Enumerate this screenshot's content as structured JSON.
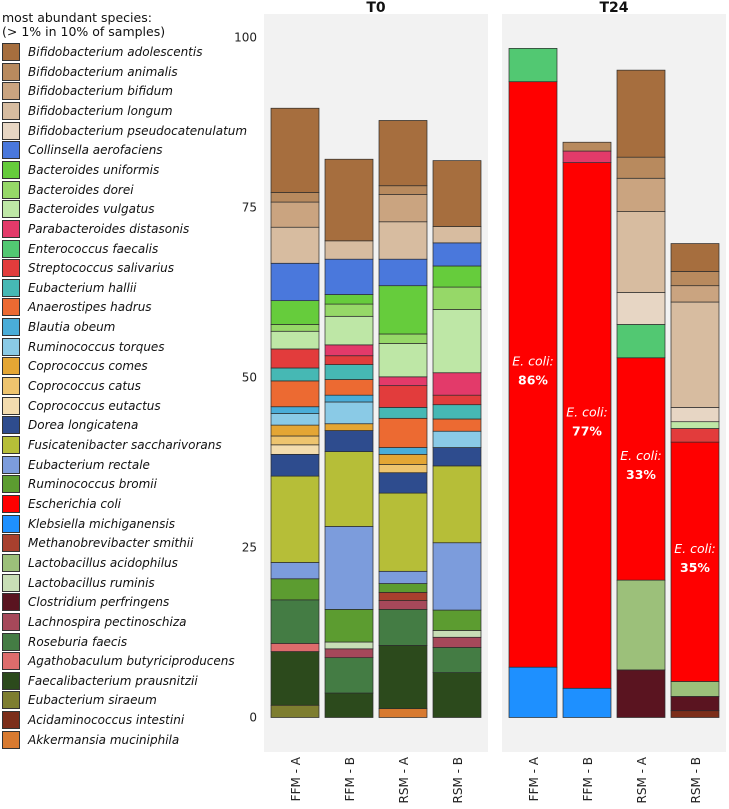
{
  "chart_data": {
    "type": "bar",
    "stacked": true,
    "legend_title": [
      "most abundant species:",
      "(> 1% in 10% of samples)"
    ],
    "ylim": [
      0,
      100
    ],
    "yticks": [
      0,
      25,
      50,
      75,
      100
    ],
    "species": [
      {
        "name": "Bifidobacterium adolescentis",
        "color": "#A66E3E"
      },
      {
        "name": "Bifidobacterium animalis",
        "color": "#B88A5E"
      },
      {
        "name": "Bifidobacterium bifidum",
        "color": "#CAA480"
      },
      {
        "name": "Bifidobacterium longum",
        "color": "#D7BCA0"
      },
      {
        "name": "Bifidobacterium pseudocatenulatum",
        "color": "#E7D6C4"
      },
      {
        "name": "Collinsella aerofaciens",
        "color": "#4A78DC"
      },
      {
        "name": "Bacteroides uniformis",
        "color": "#66CC3C"
      },
      {
        "name": "Bacteroides dorei",
        "color": "#96D868"
      },
      {
        "name": "Bacteroides vulgatus",
        "color": "#BEE7A6"
      },
      {
        "name": "Parabacteroides distasonis",
        "color": "#E33A6A"
      },
      {
        "name": "Enterococcus faecalis",
        "color": "#52C872"
      },
      {
        "name": "Streptococcus salivarius",
        "color": "#E23C3C"
      },
      {
        "name": "Eubacterium hallii",
        "color": "#46B8B4"
      },
      {
        "name": "Anaerostipes hadrus",
        "color": "#EC6A32"
      },
      {
        "name": "Blautia obeum",
        "color": "#4AADD8"
      },
      {
        "name": "Ruminococcus torques",
        "color": "#8ACAE6"
      },
      {
        "name": "Coprococcus comes",
        "color": "#E4A634"
      },
      {
        "name": "Coprococcus catus",
        "color": "#EEC46E"
      },
      {
        "name": "Coprococcus eutactus",
        "color": "#F3DCAE"
      },
      {
        "name": "Dorea longicatena",
        "color": "#2E4C8E"
      },
      {
        "name": "Fusicatenibacter saccharivorans",
        "color": "#B6BE38"
      },
      {
        "name": "Eubacterium rectale",
        "color": "#7C9CDC"
      },
      {
        "name": "Ruminococcus bromii",
        "color": "#5C9C30"
      },
      {
        "name": "Escherichia coli",
        "color": "#FF0000"
      },
      {
        "name": "Klebsiella michiganensis",
        "color": "#1E90FF"
      },
      {
        "name": "Methanobrevibacter smithii",
        "color": "#A8402E"
      },
      {
        "name": "Lactobacillus acidophilus",
        "color": "#9CC07A"
      },
      {
        "name": "Lactobacillus ruminis",
        "color": "#C8DEB6"
      },
      {
        "name": "Clostridium perfringens",
        "color": "#5A1420"
      },
      {
        "name": "Lachnospira pectinoschiza",
        "color": "#A6485A"
      },
      {
        "name": "Roseburia faecis",
        "color": "#447C44"
      },
      {
        "name": "Agathobaculum butyriciproducens",
        "color": "#DE6C6C"
      },
      {
        "name": "Faecalibacterium prausnitzii",
        "color": "#2C4A1C"
      },
      {
        "name": "Eubacterium siraeum",
        "color": "#7E7E30"
      },
      {
        "name": "Acidaminococcus intestini",
        "color": "#7C2E1A"
      },
      {
        "name": "Akkermansia muciniphila",
        "color": "#D87A30"
      }
    ],
    "panels": [
      {
        "title": "T0",
        "samples": [
          {
            "label": "FFM - A",
            "segments": [
              [
                "Eubacterium siraeum",
                1.8
              ],
              [
                "Faecalibacterium prausnitzii",
                7.9
              ],
              [
                "Agathobaculum butyriciproducens",
                1.2
              ],
              [
                "Roseburia faecis",
                6.4
              ],
              [
                "Ruminococcus bromii",
                3.1
              ],
              [
                "Eubacterium rectale",
                2.4
              ],
              [
                "Fusicatenibacter saccharivorans",
                12.7
              ],
              [
                "Dorea longicatena",
                3.2
              ],
              [
                "Coprococcus eutactus",
                1.4
              ],
              [
                "Coprococcus catus",
                1.3
              ],
              [
                "Coprococcus comes",
                1.6
              ],
              [
                "Ruminococcus torques",
                1.7
              ],
              [
                "Blautia obeum",
                1.0
              ],
              [
                "Anaerostipes hadrus",
                3.8
              ],
              [
                "Eubacterium hallii",
                1.9
              ],
              [
                "Streptococcus salivarius",
                2.8
              ],
              [
                "Bacteroides vulgatus",
                2.6
              ],
              [
                "Bacteroides dorei",
                1.0
              ],
              [
                "Bacteroides uniformis",
                3.5
              ],
              [
                "Collinsella aerofaciens",
                5.5
              ],
              [
                "Bifidobacterium longum",
                5.3
              ],
              [
                "Bifidobacterium bifidum",
                3.7
              ],
              [
                "Bifidobacterium animalis",
                1.4
              ],
              [
                "Bifidobacterium adolescentis",
                12.4
              ]
            ]
          },
          {
            "label": "FFM - B",
            "segments": [
              [
                "Faecalibacterium prausnitzii",
                3.6
              ],
              [
                "Roseburia faecis",
                5.2
              ],
              [
                "Lachnospira pectinoschiza",
                1.3
              ],
              [
                "Lactobacillus ruminis",
                1.0
              ],
              [
                "Ruminococcus bromii",
                4.8
              ],
              [
                "Eubacterium rectale",
                12.2
              ],
              [
                "Fusicatenibacter saccharivorans",
                11.0
              ],
              [
                "Dorea longicatena",
                3.1
              ],
              [
                "Coprococcus comes",
                1.0
              ],
              [
                "Ruminococcus torques",
                3.2
              ],
              [
                "Blautia obeum",
                1.0
              ],
              [
                "Anaerostipes hadrus",
                2.3
              ],
              [
                "Eubacterium hallii",
                2.2
              ],
              [
                "Streptococcus salivarius",
                1.3
              ],
              [
                "Parabacteroides distasonis",
                1.6
              ],
              [
                "Bacteroides vulgatus",
                4.2
              ],
              [
                "Bacteroides dorei",
                1.8
              ],
              [
                "Bacteroides uniformis",
                1.4
              ],
              [
                "Collinsella aerofaciens",
                5.2
              ],
              [
                "Bifidobacterium longum",
                2.7
              ],
              [
                "Bifidobacterium adolescentis",
                12.0
              ]
            ]
          },
          {
            "label": "RSM - A",
            "segments": [
              [
                "Akkermansia muciniphila",
                1.3
              ],
              [
                "Faecalibacterium prausnitzii",
                9.3
              ],
              [
                "Roseburia faecis",
                5.3
              ],
              [
                "Lachnospira pectinoschiza",
                1.3
              ],
              [
                "Methanobrevibacter smithii",
                1.2
              ],
              [
                "Ruminococcus bromii",
                1.3
              ],
              [
                "Eubacterium rectale",
                1.8
              ],
              [
                "Fusicatenibacter saccharivorans",
                11.5
              ],
              [
                "Dorea longicatena",
                3.0
              ],
              [
                "Coprococcus catus",
                1.2
              ],
              [
                "Coprococcus comes",
                1.5
              ],
              [
                "Blautia obeum",
                1.0
              ],
              [
                "Anaerostipes hadrus",
                4.3
              ],
              [
                "Eubacterium hallii",
                1.6
              ],
              [
                "Streptococcus salivarius",
                3.2
              ],
              [
                "Parabacteroides distasonis",
                1.3
              ],
              [
                "Bacteroides vulgatus",
                4.9
              ],
              [
                "Bacteroides dorei",
                1.4
              ],
              [
                "Bacteroides uniformis",
                7.1
              ],
              [
                "Collinsella aerofaciens",
                3.9
              ],
              [
                "Bifidobacterium longum",
                5.5
              ],
              [
                "Bifidobacterium bifidum",
                4.0
              ],
              [
                "Bifidobacterium animalis",
                1.3
              ],
              [
                "Bifidobacterium adolescentis",
                9.6
              ]
            ]
          },
          {
            "label": "RSM - B",
            "segments": [
              [
                "Faecalibacterium prausnitzii",
                6.6
              ],
              [
                "Roseburia faecis",
                3.7
              ],
              [
                "Lachnospira pectinoschiza",
                1.5
              ],
              [
                "Lactobacillus ruminis",
                1.0
              ],
              [
                "Ruminococcus bromii",
                3.0
              ],
              [
                "Eubacterium rectale",
                9.9
              ],
              [
                "Fusicatenibacter saccharivorans",
                11.3
              ],
              [
                "Dorea longicatena",
                2.7
              ],
              [
                "Ruminococcus torques",
                2.4
              ],
              [
                "Anaerostipes hadrus",
                1.8
              ],
              [
                "Eubacterium hallii",
                2.1
              ],
              [
                "Streptococcus salivarius",
                1.4
              ],
              [
                "Parabacteroides distasonis",
                3.3
              ],
              [
                "Bacteroides vulgatus",
                9.3
              ],
              [
                "Bacteroides dorei",
                3.3
              ],
              [
                "Bacteroides uniformis",
                3.1
              ],
              [
                "Collinsella aerofaciens",
                3.4
              ],
              [
                "Bifidobacterium longum",
                2.4
              ],
              [
                "Bifidobacterium adolescentis",
                9.7
              ]
            ]
          }
        ]
      },
      {
        "title": "T24",
        "samples": [
          {
            "label": "FFM - A",
            "annotation": {
              "line1": "E. coli:",
              "line2": "86%"
            },
            "segments": [
              [
                "Klebsiella michiganensis",
                7.4
              ],
              [
                "Escherichia coli",
                86.1
              ],
              [
                "Enterococcus faecalis",
                4.9
              ]
            ]
          },
          {
            "label": "FFM - B",
            "annotation": {
              "line1": "E. coli:",
              "line2": "77%"
            },
            "segments": [
              [
                "Klebsiella michiganensis",
                4.3
              ],
              [
                "Escherichia coli",
                77.3
              ],
              [
                "Parabacteroides distasonis",
                1.7
              ],
              [
                "Bifidobacterium animalis",
                1.3
              ]
            ]
          },
          {
            "label": "RSM - A",
            "annotation": {
              "line1": "E. coli:",
              "line2": "33%"
            },
            "segments": [
              [
                "Clostridium perfringens",
                7.0
              ],
              [
                "Lactobacillus acidophilus",
                13.2
              ],
              [
                "Escherichia coli",
                32.7
              ],
              [
                "Enterococcus faecalis",
                4.9
              ],
              [
                "Bifidobacterium pseudocatenulatum",
                4.7
              ],
              [
                "Bifidobacterium longum",
                11.9
              ],
              [
                "Bifidobacterium bifidum",
                4.9
              ],
              [
                "Bifidobacterium animalis",
                3.1
              ],
              [
                "Bifidobacterium adolescentis",
                12.8
              ]
            ]
          },
          {
            "label": "RSM - B",
            "annotation": {
              "line1": "E. coli:",
              "line2": "35%"
            },
            "segments": [
              [
                "Acidaminococcus intestini",
                1.0
              ],
              [
                "Clostridium perfringens",
                2.1
              ],
              [
                "Lactobacillus acidophilus",
                2.2
              ],
              [
                "Escherichia coli",
                35.2
              ],
              [
                "Streptococcus salivarius",
                2.0
              ],
              [
                "Bacteroides vulgatus",
                1.0
              ],
              [
                "Bifidobacterium pseudocatenulatum",
                2.1
              ],
              [
                "Bifidobacterium longum",
                15.5
              ],
              [
                "Bifidobacterium bifidum",
                2.4
              ],
              [
                "Bifidobacterium animalis",
                2.1
              ],
              [
                "Bifidobacterium adolescentis",
                4.1
              ]
            ]
          }
        ]
      }
    ]
  }
}
